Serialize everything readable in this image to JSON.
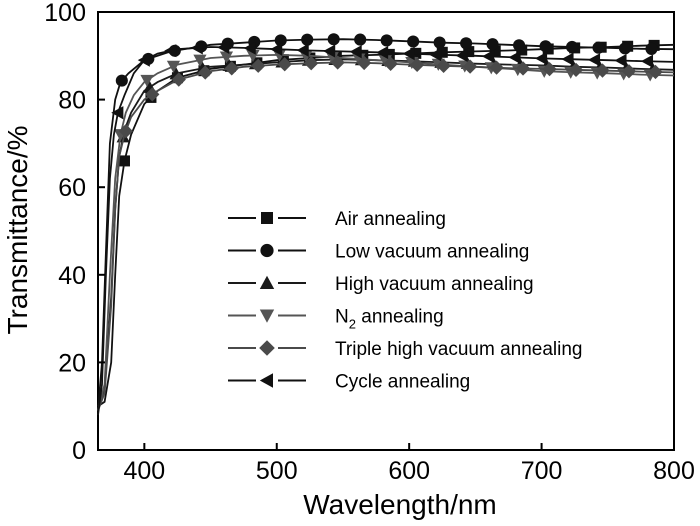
{
  "chart_data": {
    "type": "line",
    "xlabel": "Wavelength/nm",
    "ylabel": "Transmittance/%",
    "xlim": [
      365,
      800
    ],
    "ylim": [
      0,
      100
    ],
    "xticks": [
      400,
      500,
      600,
      700,
      800
    ],
    "yticks": [
      0,
      20,
      40,
      60,
      80,
      100
    ],
    "grid": false,
    "legend_position": "center",
    "series": [
      {
        "name": "Air annealing",
        "marker": "square",
        "color": "#111111",
        "x": [
          365,
          370,
          375,
          378,
          381,
          385,
          390,
          400,
          410,
          425,
          450,
          475,
          500,
          525,
          550,
          575,
          600,
          625,
          650,
          675,
          700,
          725,
          750,
          775,
          800
        ],
        "y": [
          10,
          11,
          20,
          40,
          58,
          66,
          72,
          79,
          82,
          85,
          87,
          88,
          89,
          89.5,
          90,
          90.2,
          90.5,
          90.8,
          91,
          91.2,
          91.5,
          91.8,
          92,
          92.3,
          92.5
        ],
        "marker_x": [
          385,
          405,
          425,
          445,
          465,
          485,
          505,
          525,
          545,
          565,
          585,
          605,
          625,
          645,
          665,
          685,
          705,
          725,
          745,
          765,
          785
        ]
      },
      {
        "name": "Low vacuum annealing",
        "marker": "circle",
        "color": "#111111",
        "x": [
          365,
          368,
          371,
          374,
          378,
          382,
          388,
          400,
          420,
          450,
          475,
          500,
          525,
          550,
          575,
          600,
          625,
          650,
          675,
          700,
          725,
          750,
          775,
          800
        ],
        "y": [
          9,
          20,
          45,
          70,
          80,
          84,
          86,
          89,
          91,
          92.5,
          93,
          93.5,
          93.7,
          93.8,
          93.6,
          93.3,
          93,
          92.8,
          92.5,
          92.2,
          92,
          91.8,
          91.6,
          91.5
        ],
        "marker_x": [
          383,
          403,
          423,
          443,
          463,
          483,
          503,
          523,
          543,
          563,
          583,
          603,
          623,
          643,
          663,
          683,
          703,
          723,
          743,
          763,
          783
        ]
      },
      {
        "name": "High vacuum annealing",
        "marker": "triangle-up",
        "color": "#1a1a1a",
        "x": [
          365,
          370,
          375,
          378,
          381,
          385,
          390,
          400,
          410,
          425,
          450,
          475,
          500,
          525,
          550,
          575,
          600,
          625,
          650,
          675,
          700,
          725,
          750,
          775,
          800
        ],
        "y": [
          10,
          14,
          35,
          55,
          67,
          73,
          77,
          82,
          84,
          86,
          87.5,
          88,
          88.5,
          89,
          89.2,
          89,
          88.8,
          88.5,
          88.2,
          88,
          87.8,
          87.5,
          87.3,
          87,
          86.8
        ],
        "marker_x": [
          384,
          404,
          424,
          444,
          464,
          484,
          504,
          524,
          544,
          564,
          584,
          604,
          624,
          644,
          664,
          684,
          704,
          724,
          744,
          764,
          784
        ]
      },
      {
        "name": "N2 annealing",
        "marker": "triangle-down",
        "color": "#555555",
        "x": [
          365,
          370,
          374,
          378,
          382,
          386,
          392,
          400,
          410,
          425,
          450,
          475,
          500,
          525,
          550,
          575,
          600,
          625,
          650,
          675,
          700,
          725,
          750,
          775,
          800
        ],
        "y": [
          9,
          15,
          40,
          62,
          72,
          77,
          81,
          84,
          86,
          88,
          89.5,
          90,
          90.2,
          90,
          89.5,
          89,
          88.5,
          88,
          87.5,
          87,
          86.5,
          86.2,
          86,
          85.7,
          85.5
        ],
        "marker_x": [
          382,
          402,
          422,
          442,
          462,
          482,
          502,
          522,
          542,
          562,
          582,
          602,
          622,
          642,
          662,
          682,
          702,
          722,
          742,
          762,
          782
        ]
      },
      {
        "name": "Triple high vacuum annealing",
        "marker": "diamond",
        "color": "#4a4a4a",
        "x": [
          365,
          370,
          375,
          378,
          381,
          385,
          390,
          400,
          410,
          425,
          450,
          475,
          500,
          525,
          550,
          575,
          600,
          625,
          650,
          675,
          700,
          725,
          750,
          775,
          800
        ],
        "y": [
          9,
          13,
          33,
          55,
          67,
          72,
          76,
          80,
          82,
          84.5,
          86.5,
          87.5,
          88,
          88.3,
          88.5,
          88.3,
          88,
          87.7,
          87.5,
          87.2,
          87,
          86.8,
          86.6,
          86.4,
          86.2
        ],
        "marker_x": [
          386,
          406,
          426,
          446,
          466,
          486,
          506,
          526,
          546,
          566,
          586,
          606,
          626,
          646,
          666,
          686,
          706,
          726,
          746,
          766,
          786
        ]
      },
      {
        "name": "Cycle annealing",
        "marker": "triangle-left",
        "color": "#111111",
        "x": [
          365,
          368,
          371,
          374,
          377,
          380,
          385,
          392,
          400,
          410,
          425,
          450,
          475,
          500,
          525,
          550,
          575,
          600,
          625,
          650,
          675,
          700,
          725,
          750,
          775,
          800
        ],
        "y": [
          8,
          15,
          40,
          62,
          72,
          77,
          81,
          86,
          89,
          90.5,
          91.5,
          92,
          91.8,
          91.5,
          91.2,
          91,
          90.8,
          90.5,
          90.2,
          90,
          89.7,
          89.4,
          89.2,
          89,
          88.8,
          88.6
        ],
        "marker_x": [
          380,
          400,
          420,
          440,
          460,
          480,
          500,
          520,
          540,
          560,
          580,
          600,
          620,
          640,
          660,
          680,
          700,
          720,
          740,
          760,
          780
        ]
      }
    ],
    "legend_labels": [
      {
        "text": "Air annealing"
      },
      {
        "text": "Low vacuum annealing"
      },
      {
        "text": "High vacuum annealing"
      },
      {
        "text": "N",
        "sub": "2",
        "rest": " annealing"
      },
      {
        "text": "Triple high vacuum annealing"
      },
      {
        "text": "Cycle annealing"
      }
    ]
  }
}
